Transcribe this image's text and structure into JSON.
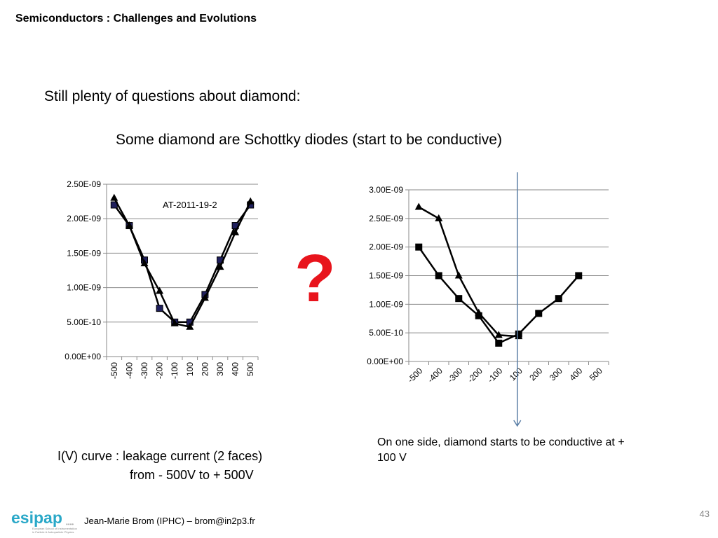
{
  "slide": {
    "title": "Semiconductors : Challenges and Evolutions",
    "intro": "Still plenty of questions about diamond:",
    "subheading": "Some diamond are Schottky diodes (start to be conductive)",
    "question_mark": "?",
    "caption_left_line1": "I(V) curve : leakage current (2 faces)",
    "caption_left_line2": "from  - 500V to + 500V",
    "caption_right": "On one side, diamond starts to be conductive at + 100 V",
    "page_number": "43",
    "footer_author": "Jean-Marie Brom (IPHC) – brom@in2p3.fr",
    "logo_text": "esipap",
    "logo_subtitle_line1": "European School of Instrumentation",
    "logo_subtitle_line2": "in Particle & Astroparticle Physics"
  },
  "colors": {
    "question_mark": "#e8141c",
    "marker_square": "#1f1f5c",
    "vline": "#5b7fa6",
    "logo": "#2aa8c8"
  },
  "chart_data": [
    {
      "type": "line",
      "title": "",
      "annotation": "AT-2011-19-2",
      "categories": [
        "-500",
        "-400",
        "-300",
        "-200",
        "-100",
        "100",
        "200",
        "300",
        "400",
        "500"
      ],
      "ylim": [
        0,
        2.5e-09
      ],
      "y_ticks": [
        "0.00E+00",
        "5.00E-10",
        "1.00E-09",
        "1.50E-09",
        "2.00E-09",
        "2.50E-09"
      ],
      "x_tick_rotation": -90,
      "gridlines": true,
      "series": [
        {
          "marker": "square",
          "values": [
            2.2e-09,
            1.9e-09,
            1.4e-09,
            7e-10,
            5e-10,
            5e-10,
            9e-10,
            1.4e-09,
            1.9e-09,
            2.2e-09
          ]
        },
        {
          "marker": "triangle",
          "values": [
            2.3e-09,
            1.9e-09,
            1.35e-09,
            9.5e-10,
            4.8e-10,
            4.3e-10,
            8.5e-10,
            1.3e-09,
            1.8e-09,
            2.25e-09
          ]
        }
      ]
    },
    {
      "type": "line",
      "title": "",
      "categories": [
        "-500",
        "-400",
        "-300",
        "-200",
        "-100",
        "100",
        "200",
        "300",
        "400",
        "500"
      ],
      "ylim": [
        0,
        3e-09
      ],
      "y_ticks": [
        "0.00E+00",
        "5.00E-10",
        "1.00E-09",
        "1.50E-09",
        "2.00E-09",
        "2.50E-09",
        "3.00E-09"
      ],
      "x_tick_rotation": -45,
      "gridlines": true,
      "series": [
        {
          "marker": "square",
          "values": [
            2e-09,
            1.5e-09,
            1.1e-09,
            8e-10,
            3.2e-10,
            4.8e-10,
            8.4e-10,
            1.1e-09,
            1.5e-09,
            null
          ]
        },
        {
          "marker": "triangle",
          "values": [
            2.7e-09,
            2.5e-09,
            1.5e-09,
            8.5e-10,
            4.6e-10,
            4.4e-10,
            null,
            null,
            null,
            null
          ]
        }
      ],
      "marker_line_at": "100"
    }
  ]
}
